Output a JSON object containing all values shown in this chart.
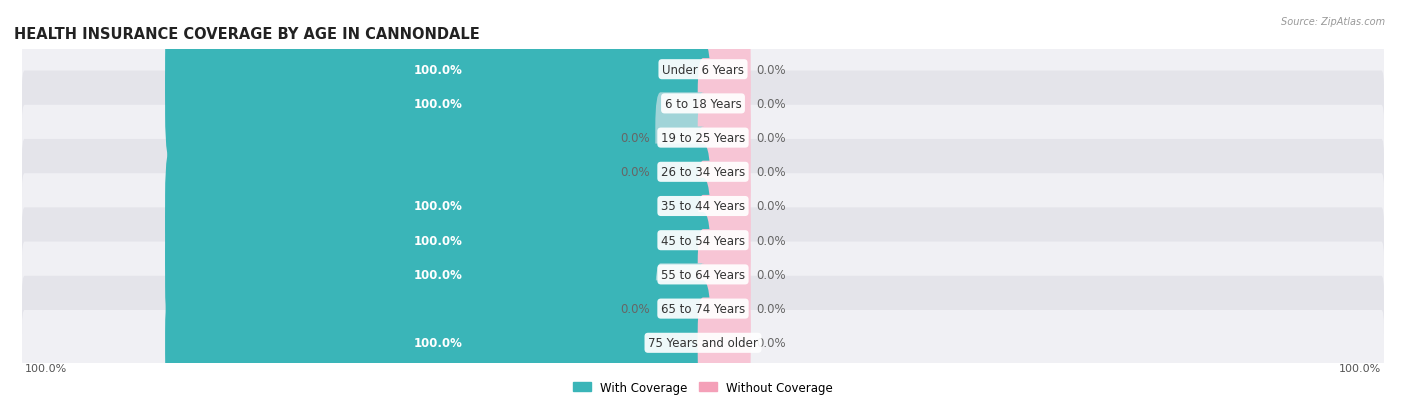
{
  "title": "HEALTH INSURANCE COVERAGE BY AGE IN CANNONDALE",
  "source": "Source: ZipAtlas.com",
  "categories": [
    "Under 6 Years",
    "6 to 18 Years",
    "19 to 25 Years",
    "26 to 34 Years",
    "35 to 44 Years",
    "45 to 54 Years",
    "55 to 64 Years",
    "65 to 74 Years",
    "75 Years and older"
  ],
  "with_coverage": [
    100.0,
    100.0,
    0.0,
    0.0,
    100.0,
    100.0,
    100.0,
    0.0,
    100.0
  ],
  "without_coverage": [
    0.0,
    0.0,
    0.0,
    0.0,
    0.0,
    0.0,
    0.0,
    0.0,
    0.0
  ],
  "color_with": "#3ab5b8",
  "color_without": "#f4a0b8",
  "color_with_zero": "#a0d4d8",
  "color_without_zero": "#f7c5d5",
  "row_bg_light": "#f0f0f4",
  "row_bg_dark": "#e4e4ea",
  "title_fontsize": 10.5,
  "label_fontsize": 8.5,
  "cat_fontsize": 8.5,
  "tick_fontsize": 8,
  "x_left_label": "100.0%",
  "x_right_label": "100.0%",
  "max_val": 100,
  "zero_stub": 8
}
